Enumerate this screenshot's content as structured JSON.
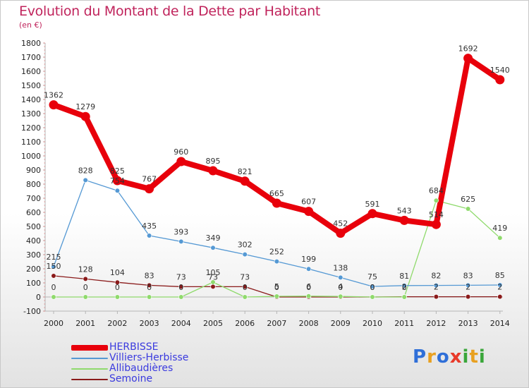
{
  "title": "Evolution du Montant de la Dette par Habitant",
  "subtitle": "(en €)",
  "logo": {
    "letters": [
      "P",
      "r",
      "o",
      "x",
      "i",
      "t",
      "i"
    ],
    "colors": [
      "#2f6fd8",
      "#e8a020",
      "#2f6fd8",
      "#e83a2a",
      "#3aa63a",
      "#e8a020",
      "#3aa63a"
    ]
  },
  "chart_data": {
    "type": "line",
    "title": "Evolution du Montant de la Dette par Habitant",
    "ylabel": "(en €)",
    "xlabel": "",
    "ylim": [
      -100,
      1800
    ],
    "yticks": [
      -100,
      0,
      100,
      200,
      300,
      400,
      500,
      600,
      700,
      800,
      900,
      1000,
      1100,
      1200,
      1300,
      1400,
      1500,
      1600,
      1700,
      1800
    ],
    "x": [
      "2000",
      "2001",
      "2002",
      "2003",
      "2004",
      "2005",
      "2006",
      "2007",
      "2008",
      "2009",
      "2010",
      "2011",
      "2012",
      "2013",
      "2014"
    ],
    "grid": false,
    "legend": "bottom-left",
    "series": [
      {
        "name": "HERBISSE",
        "color": "#e8000b",
        "width": 8,
        "values": [
          1362,
          1279,
          825,
          767,
          960,
          895,
          821,
          665,
          607,
          452,
          591,
          543,
          514,
          1692,
          1540
        ]
      },
      {
        "name": "Villiers-Herbisse",
        "color": "#5599d4",
        "width": 1.3,
        "values": [
          215,
          828,
          754,
          435,
          393,
          349,
          302,
          252,
          199,
          138,
          75,
          81,
          82,
          83,
          85
        ]
      },
      {
        "name": "Allibaudières",
        "color": "#8fda6c",
        "width": 1.3,
        "values": [
          0,
          0,
          0,
          0,
          0,
          105,
          0,
          5,
          6,
          4,
          0,
          0,
          684,
          625,
          419
        ]
      },
      {
        "name": "Semoine",
        "color": "#8a1a1a",
        "width": 1.3,
        "values": [
          150,
          128,
          104,
          83,
          73,
          73,
          73,
          0,
          0,
          0,
          0,
          2,
          2,
          2,
          2
        ]
      }
    ]
  }
}
